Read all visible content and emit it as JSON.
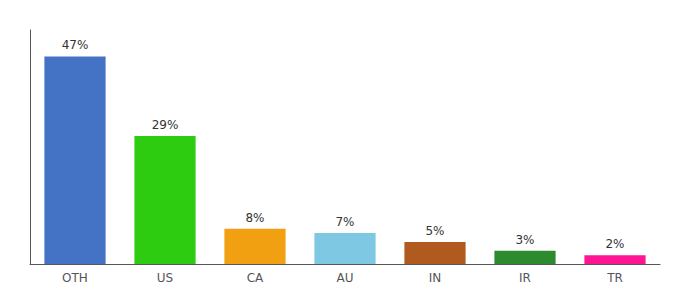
{
  "chart_data": {
    "type": "bar",
    "categories": [
      "OTH",
      "US",
      "CA",
      "AU",
      "IN",
      "IR",
      "TR"
    ],
    "values": [
      47,
      29,
      8,
      7,
      5,
      3,
      2
    ],
    "value_labels": [
      "47%",
      "29%",
      "8%",
      "7%",
      "5%",
      "3%",
      "2%"
    ],
    "colors": [
      "#4472c4",
      "#2ecc11",
      "#f0a010",
      "#7ec8e3",
      "#b05a20",
      "#2d8a2d",
      "#ff1493"
    ],
    "ylim": [
      0,
      53
    ],
    "data_labels": true,
    "tick_labels": "x",
    "grid": false
  }
}
